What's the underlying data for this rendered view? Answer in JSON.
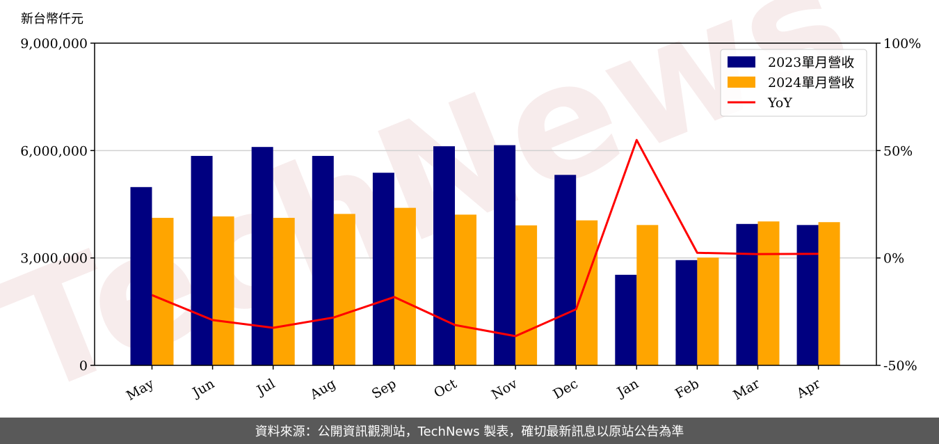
{
  "chart_data": {
    "type": "bar",
    "unit_label": "新台幣仟元",
    "categories": [
      "May",
      "Jun",
      "Jul",
      "Aug",
      "Sep",
      "Oct",
      "Nov",
      "Dec",
      "Jan",
      "Feb",
      "Mar",
      "Apr"
    ],
    "series": [
      {
        "name": "2023單月營收",
        "kind": "bar",
        "color": "#000080",
        "values": [
          4980000,
          5850000,
          6100000,
          5850000,
          5380000,
          6120000,
          6150000,
          5320000,
          2530000,
          2940000,
          3950000,
          3920000
        ]
      },
      {
        "name": "2024單月營收",
        "kind": "bar",
        "color": "#FFA500",
        "values": [
          4120000,
          4160000,
          4120000,
          4230000,
          4400000,
          4210000,
          3910000,
          4050000,
          3920000,
          3010000,
          4020000,
          4000000
        ]
      },
      {
        "name": "YoY",
        "kind": "line",
        "axis": "right",
        "color": "#FF0000",
        "values": [
          -17.3,
          -28.9,
          -32.5,
          -27.7,
          -18.2,
          -31.2,
          -36.4,
          -23.9,
          54.9,
          2.4,
          1.8,
          1.9
        ]
      }
    ],
    "ylim_left": [
      0,
      9000000
    ],
    "yticks_left": [
      "0",
      "3,000,000",
      "6,000,000",
      "9,000,000"
    ],
    "ylim_right": [
      -50,
      100
    ],
    "yticks_right": [
      "-50%",
      "0%",
      "50%",
      "100%"
    ],
    "grid": "horizontal",
    "legend": "top-right"
  },
  "watermark": "TechNews",
  "footer": "資料來源：公開資訊觀測站，TechNews 製表，確切最新訊息以原站公告為準"
}
